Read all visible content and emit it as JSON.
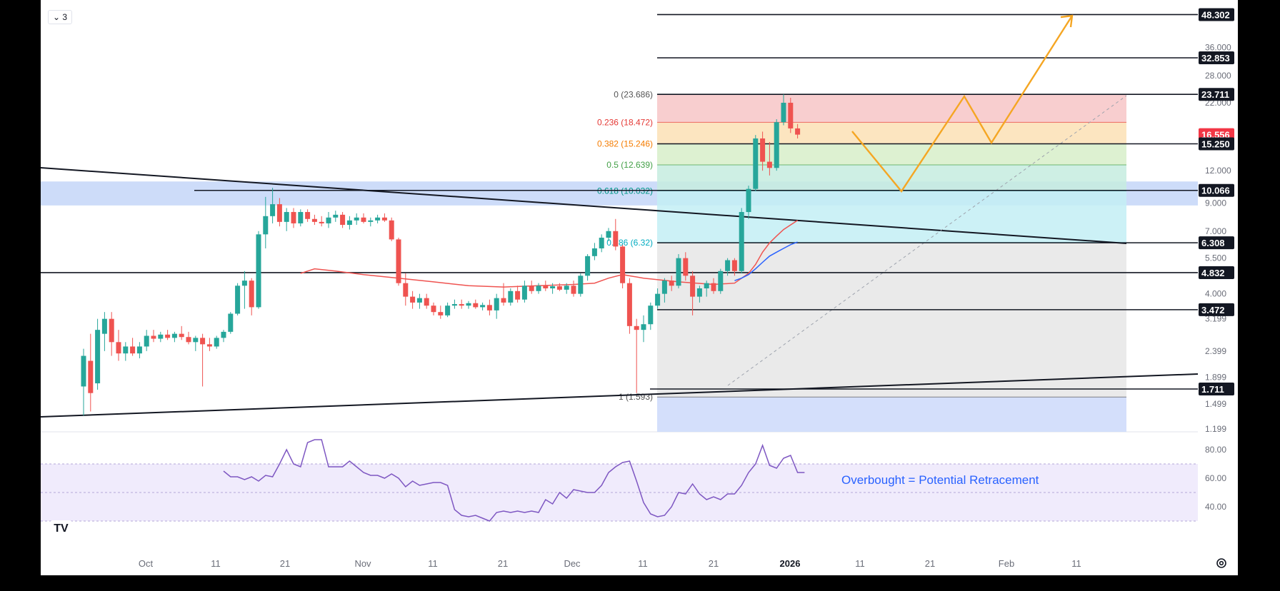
{
  "ui": {
    "legend_badge": "⌄ 3",
    "logo_text": "TV",
    "icons": [
      "tradingview-logo-icon",
      "settings-gear-icon"
    ]
  },
  "chart_data": {
    "type": "candlestick",
    "scale": "log",
    "grid": false,
    "title": "",
    "price_axis": {
      "ticks": [
        "36.000",
        "28.000",
        "22.000",
        "12.000",
        "9.000",
        "7.000",
        "5.500",
        "4.000",
        "3.199",
        "2.399",
        "1.899",
        "1.499",
        "1.199"
      ]
    },
    "price_labels": [
      {
        "text": "48.302",
        "value": 48.302,
        "style": "dark"
      },
      {
        "text": "32.853",
        "value": 32.853,
        "style": "dark"
      },
      {
        "text": "23.711",
        "value": 23.711,
        "style": "dark"
      },
      {
        "text": "16.556",
        "value": 16.556,
        "style": "red"
      },
      {
        "text": "15.250",
        "value": 15.25,
        "style": "dark"
      },
      {
        "text": "10.066",
        "value": 10.066,
        "style": "dark"
      },
      {
        "text": "6.308",
        "value": 6.308,
        "style": "dark"
      },
      {
        "text": "4.832",
        "value": 4.832,
        "style": "dark"
      },
      {
        "text": "3.472",
        "value": 3.472,
        "style": "dark"
      },
      {
        "text": "1.711",
        "value": 1.711,
        "style": "dark"
      }
    ],
    "time_axis": [
      "Oct",
      "11",
      "21",
      "Nov",
      "11",
      "21",
      "Dec",
      "11",
      "21",
      "2026",
      "11",
      "21",
      "Feb",
      "11"
    ],
    "fib_levels": [
      {
        "label": "0 (23.686)",
        "value": 23.686,
        "color": "#555555"
      },
      {
        "label": "0.236 (18.472)",
        "value": 18.472,
        "color": "#e53935"
      },
      {
        "label": "0.382 (15.246)",
        "value": 15.246,
        "color": "#f57c00"
      },
      {
        "label": "0.5 (12.639)",
        "value": 12.639,
        "color": "#43a047"
      },
      {
        "label": "0.618 (10.032)",
        "value": 10.032,
        "color": "#009688"
      },
      {
        "label": "0.786 (6.32)",
        "value": 6.32,
        "color": "#00acc1"
      },
      {
        "label": "1 (1.593)",
        "value": 1.593,
        "color": "#555555"
      }
    ],
    "candles": [
      {
        "o": 1.75,
        "h": 2.45,
        "l": 1.35,
        "c": 2.3
      },
      {
        "o": 2.2,
        "h": 2.8,
        "l": 1.4,
        "c": 1.65
      },
      {
        "o": 1.8,
        "h": 3.2,
        "l": 1.7,
        "c": 2.9
      },
      {
        "o": 2.8,
        "h": 3.4,
        "l": 2.4,
        "c": 3.2
      },
      {
        "o": 3.2,
        "h": 3.4,
        "l": 2.3,
        "c": 2.6
      },
      {
        "o": 2.6,
        "h": 2.9,
        "l": 2.2,
        "c": 2.35
      },
      {
        "o": 2.35,
        "h": 2.6,
        "l": 2.2,
        "c": 2.5
      },
      {
        "o": 2.5,
        "h": 2.7,
        "l": 2.3,
        "c": 2.35
      },
      {
        "o": 2.35,
        "h": 2.6,
        "l": 2.25,
        "c": 2.5
      },
      {
        "o": 2.5,
        "h": 2.9,
        "l": 2.4,
        "c": 2.75
      },
      {
        "o": 2.75,
        "h": 2.9,
        "l": 2.6,
        "c": 2.68
      },
      {
        "o": 2.68,
        "h": 2.85,
        "l": 2.6,
        "c": 2.78
      },
      {
        "o": 2.78,
        "h": 2.9,
        "l": 2.65,
        "c": 2.7
      },
      {
        "o": 2.7,
        "h": 2.85,
        "l": 2.6,
        "c": 2.8
      },
      {
        "o": 2.8,
        "h": 3.0,
        "l": 2.65,
        "c": 2.72
      },
      {
        "o": 2.72,
        "h": 2.85,
        "l": 2.55,
        "c": 2.6
      },
      {
        "o": 2.6,
        "h": 2.75,
        "l": 2.4,
        "c": 2.7
      },
      {
        "o": 2.7,
        "h": 2.8,
        "l": 1.75,
        "c": 2.55
      },
      {
        "o": 2.55,
        "h": 2.7,
        "l": 2.4,
        "c": 2.5
      },
      {
        "o": 2.5,
        "h": 2.75,
        "l": 2.45,
        "c": 2.7
      },
      {
        "o": 2.7,
        "h": 2.9,
        "l": 2.6,
        "c": 2.85
      },
      {
        "o": 2.85,
        "h": 3.4,
        "l": 2.8,
        "c": 3.35
      },
      {
        "o": 3.35,
        "h": 4.4,
        "l": 3.3,
        "c": 4.3
      },
      {
        "o": 4.3,
        "h": 4.9,
        "l": 3.5,
        "c": 4.5
      },
      {
        "o": 4.5,
        "h": 4.6,
        "l": 3.3,
        "c": 3.55
      },
      {
        "o": 3.55,
        "h": 7.0,
        "l": 3.5,
        "c": 6.8
      },
      {
        "o": 6.8,
        "h": 9.5,
        "l": 6.0,
        "c": 8.0
      },
      {
        "o": 8.0,
        "h": 10.3,
        "l": 7.5,
        "c": 8.9
      },
      {
        "o": 8.9,
        "h": 9.4,
        "l": 7.3,
        "c": 7.6
      },
      {
        "o": 7.6,
        "h": 8.6,
        "l": 7.0,
        "c": 8.3
      },
      {
        "o": 8.3,
        "h": 8.6,
        "l": 7.2,
        "c": 7.5
      },
      {
        "o": 7.5,
        "h": 8.5,
        "l": 7.3,
        "c": 8.3
      },
      {
        "o": 8.3,
        "h": 8.5,
        "l": 7.6,
        "c": 7.8
      },
      {
        "o": 7.8,
        "h": 8.1,
        "l": 7.4,
        "c": 7.6
      },
      {
        "o": 7.6,
        "h": 8.0,
        "l": 7.3,
        "c": 7.5
      },
      {
        "o": 7.5,
        "h": 8.3,
        "l": 7.2,
        "c": 7.9
      },
      {
        "o": 7.9,
        "h": 8.4,
        "l": 7.6,
        "c": 8.1
      },
      {
        "o": 8.1,
        "h": 8.3,
        "l": 7.2,
        "c": 7.4
      },
      {
        "o": 7.4,
        "h": 8.0,
        "l": 7.1,
        "c": 7.7
      },
      {
        "o": 7.7,
        "h": 8.2,
        "l": 7.4,
        "c": 7.9
      },
      {
        "o": 7.9,
        "h": 8.2,
        "l": 7.5,
        "c": 7.6
      },
      {
        "o": 7.6,
        "h": 7.9,
        "l": 7.3,
        "c": 7.7
      },
      {
        "o": 7.7,
        "h": 8.1,
        "l": 7.5,
        "c": 7.9
      },
      {
        "o": 7.9,
        "h": 8.2,
        "l": 7.6,
        "c": 7.7
      },
      {
        "o": 7.7,
        "h": 7.9,
        "l": 6.4,
        "c": 6.5
      },
      {
        "o": 6.5,
        "h": 6.6,
        "l": 4.3,
        "c": 4.4
      },
      {
        "o": 4.4,
        "h": 4.8,
        "l": 3.6,
        "c": 3.9
      },
      {
        "o": 3.9,
        "h": 4.1,
        "l": 3.5,
        "c": 3.7
      },
      {
        "o": 3.7,
        "h": 4.0,
        "l": 3.5,
        "c": 3.85
      },
      {
        "o": 3.85,
        "h": 4.0,
        "l": 3.5,
        "c": 3.6
      },
      {
        "o": 3.6,
        "h": 3.7,
        "l": 3.3,
        "c": 3.4
      },
      {
        "o": 3.4,
        "h": 3.6,
        "l": 3.2,
        "c": 3.3
      },
      {
        "o": 3.3,
        "h": 3.7,
        "l": 3.25,
        "c": 3.6
      },
      {
        "o": 3.6,
        "h": 3.8,
        "l": 3.5,
        "c": 3.65
      },
      {
        "o": 3.65,
        "h": 3.8,
        "l": 3.5,
        "c": 3.6
      },
      {
        "o": 3.6,
        "h": 3.75,
        "l": 3.5,
        "c": 3.68
      },
      {
        "o": 3.68,
        "h": 3.8,
        "l": 3.5,
        "c": 3.55
      },
      {
        "o": 3.55,
        "h": 3.7,
        "l": 3.45,
        "c": 3.62
      },
      {
        "o": 3.62,
        "h": 3.8,
        "l": 3.3,
        "c": 3.45
      },
      {
        "o": 3.45,
        "h": 4.0,
        "l": 3.2,
        "c": 3.85
      },
      {
        "o": 3.85,
        "h": 4.4,
        "l": 3.6,
        "c": 3.7
      },
      {
        "o": 3.7,
        "h": 4.2,
        "l": 3.6,
        "c": 4.1
      },
      {
        "o": 4.1,
        "h": 4.3,
        "l": 3.7,
        "c": 3.8
      },
      {
        "o": 3.8,
        "h": 4.5,
        "l": 3.7,
        "c": 4.3
      },
      {
        "o": 4.3,
        "h": 4.5,
        "l": 4.0,
        "c": 4.1
      },
      {
        "o": 4.1,
        "h": 4.4,
        "l": 4.0,
        "c": 4.3
      },
      {
        "o": 4.3,
        "h": 4.5,
        "l": 4.1,
        "c": 4.2
      },
      {
        "o": 4.2,
        "h": 4.4,
        "l": 4.0,
        "c": 4.28
      },
      {
        "o": 4.28,
        "h": 4.4,
        "l": 4.1,
        "c": 4.15
      },
      {
        "o": 4.15,
        "h": 4.4,
        "l": 4.0,
        "c": 4.3
      },
      {
        "o": 4.3,
        "h": 4.5,
        "l": 3.9,
        "c": 4.0
      },
      {
        "o": 4.0,
        "h": 4.8,
        "l": 3.9,
        "c": 4.7
      },
      {
        "o": 4.7,
        "h": 5.7,
        "l": 4.5,
        "c": 5.6
      },
      {
        "o": 5.6,
        "h": 6.3,
        "l": 5.4,
        "c": 6.0
      },
      {
        "o": 6.0,
        "h": 6.8,
        "l": 5.8,
        "c": 6.6
      },
      {
        "o": 6.6,
        "h": 7.2,
        "l": 6.4,
        "c": 7.0
      },
      {
        "o": 7.0,
        "h": 7.8,
        "l": 5.9,
        "c": 6.1
      },
      {
        "o": 6.1,
        "h": 6.2,
        "l": 4.2,
        "c": 4.4
      },
      {
        "o": 4.4,
        "h": 4.6,
        "l": 2.8,
        "c": 3.0
      },
      {
        "o": 3.0,
        "h": 3.2,
        "l": 1.65,
        "c": 2.9
      },
      {
        "o": 2.9,
        "h": 3.3,
        "l": 2.6,
        "c": 3.05
      },
      {
        "o": 3.05,
        "h": 3.7,
        "l": 2.9,
        "c": 3.6
      },
      {
        "o": 3.6,
        "h": 4.2,
        "l": 3.5,
        "c": 4.0
      },
      {
        "o": 4.0,
        "h": 4.6,
        "l": 3.7,
        "c": 4.5
      },
      {
        "o": 4.5,
        "h": 4.7,
        "l": 4.1,
        "c": 4.3
      },
      {
        "o": 4.3,
        "h": 5.7,
        "l": 4.2,
        "c": 5.5
      },
      {
        "o": 5.5,
        "h": 5.8,
        "l": 4.5,
        "c": 4.7
      },
      {
        "o": 4.7,
        "h": 4.9,
        "l": 3.3,
        "c": 3.9
      },
      {
        "o": 3.9,
        "h": 4.3,
        "l": 3.7,
        "c": 4.2
      },
      {
        "o": 4.2,
        "h": 4.5,
        "l": 3.9,
        "c": 4.4
      },
      {
        "o": 4.4,
        "h": 4.6,
        "l": 4.0,
        "c": 4.1
      },
      {
        "o": 4.1,
        "h": 5.0,
        "l": 4.0,
        "c": 4.9
      },
      {
        "o": 4.9,
        "h": 5.5,
        "l": 4.7,
        "c": 5.4
      },
      {
        "o": 5.4,
        "h": 5.5,
        "l": 4.7,
        "c": 4.9
      },
      {
        "o": 4.9,
        "h": 8.6,
        "l": 4.8,
        "c": 8.3
      },
      {
        "o": 8.3,
        "h": 10.5,
        "l": 7.8,
        "c": 10.2
      },
      {
        "o": 10.2,
        "h": 16.5,
        "l": 10.0,
        "c": 16.0
      },
      {
        "o": 16.0,
        "h": 17.0,
        "l": 12.0,
        "c": 13.0
      },
      {
        "o": 13.0,
        "h": 15.5,
        "l": 11.5,
        "c": 12.3
      },
      {
        "o": 12.3,
        "h": 19.0,
        "l": 12.0,
        "c": 18.5
      },
      {
        "o": 18.5,
        "h": 23.7,
        "l": 18.0,
        "c": 22.0
      },
      {
        "o": 22.0,
        "h": 23.0,
        "l": 16.8,
        "c": 17.5
      },
      {
        "o": 17.5,
        "h": 18.2,
        "l": 16.0,
        "c": 16.556
      }
    ],
    "ema_red": [
      [
        31,
        4.8
      ],
      [
        33,
        5.0
      ],
      [
        36,
        4.9
      ],
      [
        40,
        4.75
      ],
      [
        45,
        4.6
      ],
      [
        50,
        4.45
      ],
      [
        55,
        4.3
      ],
      [
        60,
        4.25
      ],
      [
        65,
        4.3
      ],
      [
        70,
        4.35
      ],
      [
        73,
        4.4
      ],
      [
        75,
        4.6
      ],
      [
        77,
        4.75
      ],
      [
        80,
        4.6
      ],
      [
        85,
        4.45
      ],
      [
        90,
        4.35
      ],
      [
        93,
        4.4
      ],
      [
        95,
        4.8
      ],
      [
        96,
        5.2
      ],
      [
        97,
        5.8
      ],
      [
        98,
        6.3
      ],
      [
        99,
        6.7
      ],
      [
        100,
        7.1
      ],
      [
        101,
        7.4
      ],
      [
        102,
        7.7
      ]
    ],
    "ema_blue": [
      [
        93,
        4.5
      ],
      [
        94,
        4.6
      ],
      [
        95,
        4.75
      ],
      [
        96,
        5.0
      ],
      [
        97,
        5.3
      ],
      [
        98,
        5.6
      ],
      [
        99,
        5.8
      ],
      [
        100,
        6.0
      ],
      [
        101,
        6.2
      ],
      [
        102,
        6.35
      ]
    ],
    "horizontal_lines": [
      48.302,
      32.853,
      23.711,
      15.25,
      10.066,
      6.308,
      4.832,
      3.472,
      1.711
    ],
    "rsi": {
      "ticks": [
        "80.00",
        "60.00",
        "40.00"
      ],
      "upper": 70,
      "middle": 50,
      "lower": 30,
      "annotation": "Overbought = Potential Retracement",
      "values": [
        [
          20,
          65
        ],
        [
          21,
          61
        ],
        [
          22,
          61
        ],
        [
          23,
          59
        ],
        [
          24,
          61
        ],
        [
          25,
          58
        ],
        [
          26,
          62
        ],
        [
          27,
          61
        ],
        [
          28,
          70
        ],
        [
          29,
          80
        ],
        [
          30,
          70
        ],
        [
          31,
          68
        ],
        [
          32,
          85
        ],
        [
          33,
          87
        ],
        [
          34,
          87
        ],
        [
          35,
          68
        ],
        [
          36,
          68
        ],
        [
          37,
          68
        ],
        [
          38,
          72
        ],
        [
          39,
          68
        ],
        [
          40,
          64
        ],
        [
          41,
          62
        ],
        [
          42,
          62
        ],
        [
          43,
          60
        ],
        [
          44,
          63
        ],
        [
          45,
          60
        ],
        [
          46,
          54
        ],
        [
          47,
          58
        ],
        [
          48,
          55
        ],
        [
          49,
          56
        ],
        [
          50,
          57
        ],
        [
          51,
          57
        ],
        [
          52,
          55
        ],
        [
          53,
          38
        ],
        [
          54,
          34
        ],
        [
          55,
          33
        ],
        [
          56,
          34
        ],
        [
          57,
          32
        ],
        [
          58,
          30
        ],
        [
          59,
          36
        ],
        [
          60,
          37
        ],
        [
          61,
          36
        ],
        [
          62,
          37
        ],
        [
          63,
          36
        ],
        [
          64,
          37
        ],
        [
          65,
          36
        ],
        [
          66,
          45
        ],
        [
          67,
          42
        ],
        [
          68,
          50
        ],
        [
          69,
          46
        ],
        [
          70,
          52
        ],
        [
          71,
          51
        ],
        [
          72,
          50
        ],
        [
          73,
          50
        ],
        [
          74,
          55
        ],
        [
          75,
          64
        ],
        [
          76,
          68
        ],
        [
          77,
          71
        ],
        [
          78,
          72
        ],
        [
          79,
          58
        ],
        [
          80,
          43
        ],
        [
          81,
          35
        ],
        [
          82,
          33
        ],
        [
          83,
          34
        ],
        [
          84,
          40
        ],
        [
          85,
          50
        ],
        [
          86,
          49
        ],
        [
          87,
          56
        ],
        [
          88,
          49
        ],
        [
          89,
          45
        ],
        [
          90,
          47
        ],
        [
          91,
          45
        ],
        [
          92,
          49
        ],
        [
          93,
          49
        ],
        [
          94,
          55
        ],
        [
          95,
          64
        ],
        [
          96,
          70
        ],
        [
          97,
          83
        ],
        [
          98,
          69
        ],
        [
          99,
          67
        ],
        [
          100,
          74
        ],
        [
          101,
          76
        ],
        [
          102,
          64
        ],
        [
          103,
          64
        ]
      ]
    }
  }
}
